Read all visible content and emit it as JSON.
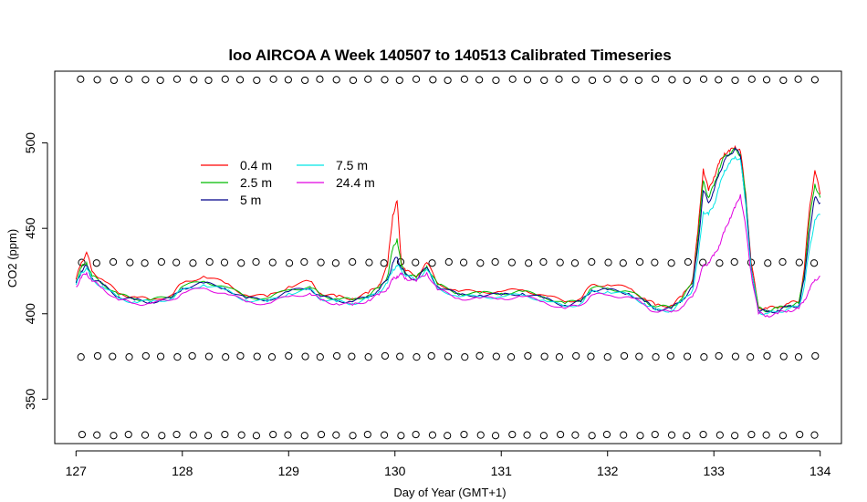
{
  "chart_data": {
    "type": "line",
    "title": "loo AIRCOA A  Week 140507 to 140513  Calibrated Timeseries",
    "xlabel": "Day of Year (GMT+1)",
    "ylabel": "CO2 (ppm)",
    "xlim": [
      126.8,
      134.2
    ],
    "ylim": [
      324,
      542
    ],
    "xticks": [
      127,
      128,
      129,
      130,
      131,
      132,
      133,
      134
    ],
    "yticks": [
      350,
      400,
      450,
      500
    ],
    "grid": false,
    "legend_position": "top-left",
    "series": [
      {
        "name": "0.4 m",
        "color": "#ff0000",
        "x": [
          127.0,
          127.05,
          127.1,
          127.15,
          127.25,
          127.4,
          127.55,
          127.7,
          127.9,
          128.0,
          128.2,
          128.4,
          128.6,
          128.8,
          129.0,
          129.2,
          129.3,
          129.45,
          129.6,
          129.75,
          129.85,
          129.93,
          129.98,
          130.02,
          130.06,
          130.1,
          130.2,
          130.3,
          130.4,
          130.6,
          130.8,
          131.0,
          131.2,
          131.4,
          131.6,
          131.75,
          131.85,
          132.0,
          132.2,
          132.35,
          132.45,
          132.6,
          132.7,
          132.8,
          132.85,
          132.9,
          132.95,
          133.0,
          133.05,
          133.1,
          133.15,
          133.2,
          133.25,
          133.3,
          133.35,
          133.42,
          133.5,
          133.6,
          133.7,
          133.8,
          133.85,
          133.9,
          133.95,
          134.0
        ],
        "y": [
          420,
          430,
          436,
          425,
          420,
          412,
          410,
          408,
          411,
          418,
          422,
          418,
          411,
          410,
          416,
          419,
          412,
          410,
          409,
          412,
          417,
          428,
          458,
          466,
          430,
          425,
          422,
          430,
          418,
          413,
          413,
          413,
          414,
          411,
          407,
          409,
          417,
          417,
          415,
          409,
          405,
          405,
          410,
          420,
          448,
          485,
          472,
          480,
          488,
          494,
          495,
          498,
          495,
          470,
          430,
          404,
          403,
          404,
          406,
          407,
          426,
          462,
          484,
          470
        ]
      },
      {
        "name": "2.5 m",
        "color": "#00bb00",
        "x": [
          127.0,
          127.05,
          127.1,
          127.15,
          127.25,
          127.4,
          127.55,
          127.7,
          127.9,
          128.0,
          128.2,
          128.4,
          128.6,
          128.8,
          129.0,
          129.2,
          129.3,
          129.45,
          129.6,
          129.75,
          129.85,
          129.93,
          129.98,
          130.02,
          130.06,
          130.1,
          130.2,
          130.3,
          130.4,
          130.6,
          130.8,
          131.0,
          131.2,
          131.4,
          131.6,
          131.75,
          131.85,
          132.0,
          132.2,
          132.35,
          132.45,
          132.6,
          132.7,
          132.8,
          132.85,
          132.9,
          132.95,
          133.0,
          133.05,
          133.1,
          133.15,
          133.2,
          133.25,
          133.3,
          133.35,
          133.42,
          133.5,
          133.6,
          133.7,
          133.8,
          133.85,
          133.9,
          133.95,
          134.0
        ],
        "y": [
          419,
          427,
          430,
          422,
          418,
          411,
          409,
          408,
          410,
          416,
          419,
          416,
          410,
          409,
          414,
          416,
          411,
          409,
          408,
          411,
          415,
          422,
          438,
          444,
          428,
          424,
          421,
          428,
          417,
          412,
          412,
          412,
          413,
          410,
          406,
          408,
          415,
          415,
          413,
          408,
          404,
          404,
          409,
          418,
          444,
          478,
          468,
          475,
          485,
          492,
          494,
          496,
          493,
          468,
          428,
          403,
          402,
          403,
          405,
          406,
          423,
          455,
          476,
          468
        ]
      },
      {
        "name": "5 m",
        "color": "#00008b",
        "x": [
          127.0,
          127.05,
          127.1,
          127.15,
          127.25,
          127.4,
          127.55,
          127.7,
          127.9,
          128.0,
          128.2,
          128.4,
          128.6,
          128.8,
          129.0,
          129.2,
          129.3,
          129.45,
          129.6,
          129.75,
          129.85,
          129.93,
          129.98,
          130.02,
          130.06,
          130.1,
          130.2,
          130.3,
          130.4,
          130.6,
          130.8,
          131.0,
          131.2,
          131.4,
          131.6,
          131.75,
          131.85,
          132.0,
          132.2,
          132.35,
          132.45,
          132.6,
          132.7,
          132.8,
          132.85,
          132.9,
          132.95,
          133.0,
          133.05,
          133.1,
          133.15,
          133.2,
          133.25,
          133.3,
          133.35,
          133.42,
          133.5,
          133.6,
          133.7,
          133.8,
          133.85,
          133.9,
          133.95,
          134.0
        ],
        "y": [
          418,
          425,
          428,
          421,
          417,
          410,
          408,
          407,
          409,
          415,
          418,
          415,
          409,
          408,
          413,
          415,
          410,
          408,
          407,
          410,
          414,
          420,
          430,
          433,
          427,
          423,
          420,
          427,
          416,
          411,
          411,
          411,
          412,
          409,
          405,
          407,
          414,
          414,
          412,
          407,
          403,
          403,
          408,
          416,
          440,
          472,
          465,
          472,
          482,
          490,
          493,
          497,
          492,
          466,
          427,
          402,
          401,
          402,
          404,
          405,
          420,
          448,
          468,
          465
        ]
      },
      {
        "name": "7.5 m",
        "color": "#00e5e5",
        "x": [
          127.0,
          127.05,
          127.1,
          127.15,
          127.25,
          127.4,
          127.55,
          127.7,
          127.9,
          128.0,
          128.2,
          128.4,
          128.6,
          128.8,
          129.0,
          129.2,
          129.3,
          129.45,
          129.6,
          129.75,
          129.85,
          129.93,
          129.98,
          130.02,
          130.06,
          130.1,
          130.2,
          130.3,
          130.4,
          130.6,
          130.8,
          131.0,
          131.2,
          131.4,
          131.6,
          131.75,
          131.85,
          132.0,
          132.2,
          132.35,
          132.45,
          132.6,
          132.7,
          132.8,
          132.85,
          132.9,
          132.95,
          133.0,
          133.05,
          133.1,
          133.15,
          133.2,
          133.25,
          133.3,
          133.35,
          133.42,
          133.5,
          133.6,
          133.7,
          133.8,
          133.85,
          133.9,
          133.95,
          134.0
        ],
        "y": [
          417,
          424,
          427,
          420,
          416,
          409,
          407,
          407,
          409,
          414,
          417,
          414,
          408,
          407,
          412,
          414,
          409,
          407,
          406,
          409,
          413,
          418,
          426,
          428,
          426,
          422,
          420,
          426,
          415,
          410,
          410,
          410,
          411,
          408,
          404,
          406,
          413,
          413,
          411,
          406,
          402,
          402,
          407,
          414,
          432,
          460,
          458,
          464,
          474,
          484,
          488,
          492,
          490,
          464,
          426,
          401,
          400,
          401,
          403,
          404,
          416,
          438,
          455,
          458
        ]
      },
      {
        "name": "24.4 m",
        "color": "#e000e0",
        "x": [
          127.0,
          127.05,
          127.1,
          127.15,
          127.25,
          127.4,
          127.55,
          127.7,
          127.9,
          128.0,
          128.2,
          128.4,
          128.6,
          128.8,
          129.0,
          129.2,
          129.3,
          129.45,
          129.6,
          129.75,
          129.85,
          129.93,
          129.98,
          130.02,
          130.06,
          130.1,
          130.2,
          130.3,
          130.4,
          130.6,
          130.8,
          131.0,
          131.2,
          131.4,
          131.6,
          131.75,
          131.85,
          132.0,
          132.2,
          132.35,
          132.45,
          132.6,
          132.7,
          132.8,
          132.85,
          132.9,
          132.95,
          133.0,
          133.05,
          133.1,
          133.15,
          133.2,
          133.25,
          133.3,
          133.35,
          133.42,
          133.5,
          133.6,
          133.7,
          133.8,
          133.85,
          133.9,
          133.95,
          134.0
        ],
        "y": [
          416,
          421,
          424,
          419,
          415,
          408,
          406,
          406,
          408,
          412,
          415,
          412,
          407,
          406,
          410,
          412,
          408,
          406,
          405,
          408,
          411,
          415,
          420,
          422,
          423,
          421,
          419,
          424,
          414,
          409,
          409,
          409,
          410,
          407,
          403,
          405,
          411,
          411,
          410,
          405,
          401,
          401,
          404,
          410,
          418,
          428,
          430,
          434,
          440,
          448,
          456,
          462,
          470,
          450,
          424,
          400,
          399,
          400,
          402,
          403,
          408,
          414,
          420,
          422
        ]
      }
    ],
    "reference_points": {
      "description_rows_y": [
        537,
        430,
        375,
        329
      ],
      "x": [
        127.05,
        127.2,
        127.35,
        127.5,
        127.65,
        127.8,
        127.95,
        128.1,
        128.25,
        128.4,
        128.55,
        128.7,
        128.85,
        129.0,
        129.15,
        129.3,
        129.45,
        129.6,
        129.75,
        129.9,
        130.05,
        130.2,
        130.35,
        130.5,
        130.65,
        130.8,
        130.95,
        131.1,
        131.25,
        131.4,
        131.55,
        131.7,
        131.85,
        132.0,
        132.15,
        132.3,
        132.45,
        132.6,
        132.75,
        132.9,
        133.05,
        133.2,
        133.35,
        133.5,
        133.65,
        133.8,
        133.95
      ]
    }
  }
}
